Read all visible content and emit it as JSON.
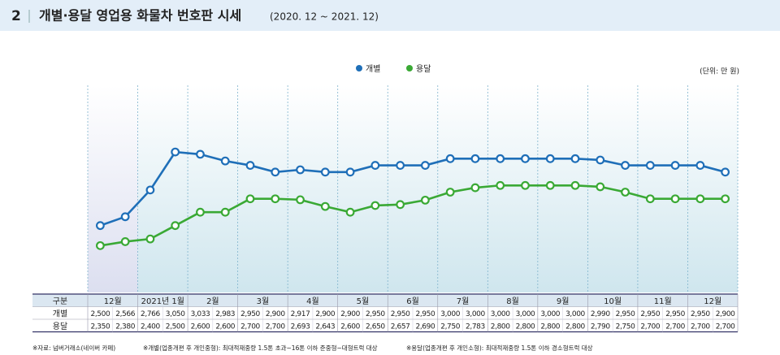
{
  "header": {
    "number": "2",
    "title": "개별·용달 영업용 화물차 번호판 시세",
    "period": "(2020. 12 ~ 2021. 12)"
  },
  "chart_data": {
    "type": "line",
    "unit": "(단위: 만 원)",
    "row_header": "구분",
    "groups": [
      "12월",
      "2021년 1월",
      "2월",
      "3월",
      "4월",
      "5월",
      "6월",
      "7월",
      "8월",
      "9월",
      "10월",
      "11월",
      "12월"
    ],
    "ylim": [
      2000,
      3500
    ],
    "series": [
      {
        "name": "개별",
        "color": "#1f6fb8",
        "values": [
          2500,
          2566,
          2766,
          3050,
          3033,
          2983,
          2950,
          2900,
          2917,
          2900,
          2900,
          2950,
          2950,
          2950,
          3000,
          3000,
          3000,
          3000,
          3000,
          3000,
          2990,
          2950,
          2950,
          2950,
          2950,
          2900
        ],
        "value_labels": [
          "2,500",
          "2,566",
          "2,766",
          "3,050",
          "3,033",
          "2,983",
          "2,950",
          "2,900",
          "2,917",
          "2,900",
          "2,900",
          "2,950",
          "2,950",
          "2,950",
          "3,000",
          "3,000",
          "3,000",
          "3,000",
          "3,000",
          "3,000",
          "2,990",
          "2,950",
          "2,950",
          "2,950",
          "2,950",
          "2,900"
        ]
      },
      {
        "name": "용달",
        "color": "#3aa935",
        "values": [
          2350,
          2380,
          2400,
          2500,
          2600,
          2600,
          2700,
          2700,
          2693,
          2643,
          2600,
          2650,
          2657,
          2690,
          2750,
          2783,
          2800,
          2800,
          2800,
          2800,
          2790,
          2750,
          2700,
          2700,
          2700,
          2700
        ],
        "value_labels": [
          "2,350",
          "2,380",
          "2,400",
          "2,500",
          "2,600",
          "2,600",
          "2,700",
          "2,700",
          "2,693",
          "2,643",
          "2,600",
          "2,650",
          "2,657",
          "2,690",
          "2,750",
          "2,783",
          "2,800",
          "2,800",
          "2,800",
          "2,800",
          "2,790",
          "2,750",
          "2,700",
          "2,700",
          "2,700",
          "2,700"
        ]
      }
    ],
    "notes": [
      "※자료: 넘버거래소(네이버 카페)",
      "※개별(업종개편 후 개인중형): 최대적재중량 1.5톤 초과~16톤 이하 준중형~대형트럭 대상",
      "※용달(업종개편 후 개인소형): 최대적재중량 1.5톤 이하 경소형트럭 대상"
    ]
  }
}
